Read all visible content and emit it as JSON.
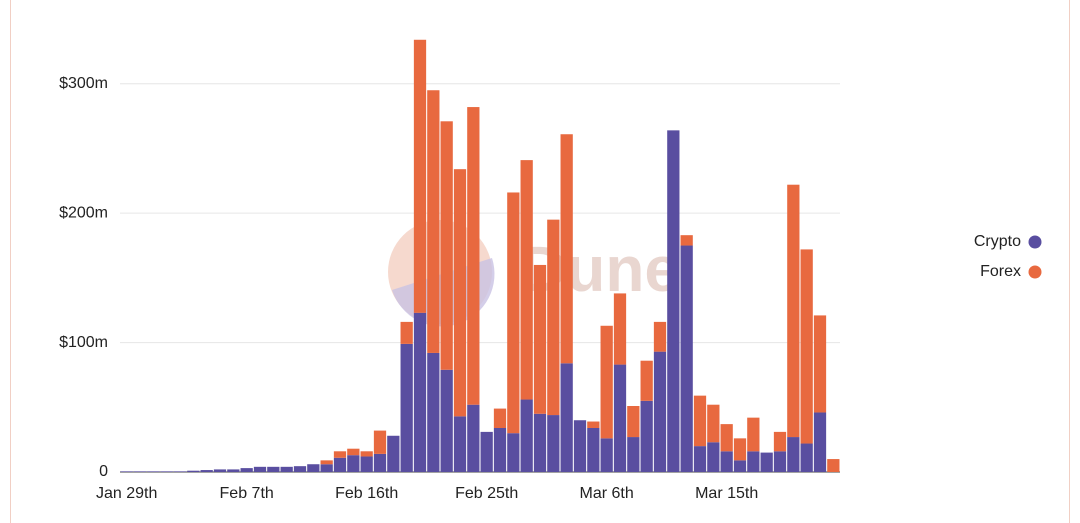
{
  "chart_data": {
    "type": "stacked-bar",
    "watermark": "Dune",
    "categories": [
      "Jan 29th",
      null,
      null,
      null,
      null,
      null,
      null,
      null,
      null,
      "Feb 7th",
      null,
      null,
      null,
      null,
      null,
      null,
      null,
      null,
      "Feb 16th",
      null,
      null,
      null,
      null,
      null,
      null,
      null,
      null,
      "Feb 25th",
      null,
      null,
      null,
      null,
      null,
      null,
      null,
      null,
      "Mar 6th",
      null,
      null,
      null,
      null,
      null,
      null,
      null,
      null,
      "Mar 15th",
      null,
      null,
      null,
      null,
      null,
      null,
      null,
      null
    ],
    "series": [
      {
        "name": "Crypto",
        "color": "#594ea0",
        "values": [
          0.5,
          0.5,
          0.5,
          0.5,
          0.5,
          1,
          1.5,
          2,
          2,
          3,
          4,
          4,
          4,
          4.5,
          6,
          6,
          11,
          13,
          12,
          14,
          28,
          99,
          123,
          92,
          79,
          43,
          52,
          31,
          34,
          30,
          56,
          45,
          44,
          84,
          40,
          34,
          26,
          83,
          27,
          55,
          93,
          264,
          175,
          20,
          23,
          16,
          9,
          16,
          15,
          16,
          27,
          22,
          46,
          0
        ]
      },
      {
        "name": "Forex",
        "color": "#e8693f",
        "values": [
          0,
          0,
          0,
          0,
          0,
          0,
          0,
          0,
          0,
          0,
          0,
          0,
          0,
          0,
          0,
          3,
          5,
          5,
          4,
          18,
          0,
          17,
          211,
          203,
          192,
          191,
          230,
          0,
          15,
          186,
          185,
          115,
          151,
          177,
          0,
          5,
          87,
          55,
          24,
          31,
          23,
          0,
          8,
          39,
          29,
          21,
          17,
          26,
          0,
          15,
          195,
          150,
          75,
          10
        ]
      }
    ],
    "ylim": [
      0,
      340
    ],
    "yticks": [
      0,
      {
        "value": 100,
        "label": "$100m"
      },
      {
        "value": 200,
        "label": "$200m"
      },
      {
        "value": 300,
        "label": "$300m"
      }
    ],
    "grid": true,
    "legend": "right"
  }
}
